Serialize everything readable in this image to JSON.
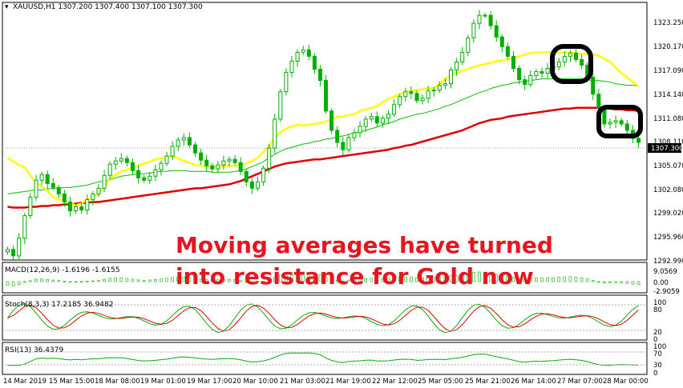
{
  "header": {
    "symbol_info": "XAUUSD,H1  1307.200 1307.400 1307.100 1307.300"
  },
  "annotation": {
    "line1": "Moving averages have turned",
    "line2": "into resistance for Gold now"
  },
  "main_axis": {
    "tick_labels": [
      "1323.250",
      "1320.170",
      "1317.090",
      "1314.140",
      "1311.080",
      "1308.110",
      "1305.070",
      "1302.080",
      "1299.020",
      "1295.960",
      "1292.990"
    ],
    "current_price": "1307.300"
  },
  "macd": {
    "label": "MACD(12,26,9) -1.6196 -1.6155",
    "tick_labels": [
      "9.0569",
      "0.00",
      "-2.9059"
    ]
  },
  "stoch": {
    "label": "Stoch(8,3,3) 17.2185 36.9482",
    "tick_labels": [
      "100",
      "80",
      "20",
      "0"
    ]
  },
  "rsi": {
    "label": "RSI(13) 36.4379",
    "tick_labels": [
      "100",
      "70",
      "30",
      "0"
    ]
  },
  "time_axis": {
    "labels": [
      "14 Mar 2019",
      "15 Mar 15:00",
      "18 Mar 08:00",
      "19 Mar 01:00",
      "19 Mar 17:00",
      "20 Mar 10:00",
      "21 Mar 03:00",
      "21 Mar 19:00",
      "22 Mar 12:00",
      "25 Mar 05:00",
      "25 Mar 21:00",
      "26 Mar 14:00",
      "27 Mar 07:00",
      "28 Mar 00:00"
    ]
  },
  "colors": {
    "bull": "#00b000",
    "ma_fast": "#ffff00",
    "ma_mid": "#00c000",
    "ma_slow": "#e00000",
    "annotation": "#e8141e"
  },
  "chart_data": {
    "type": "candlestick",
    "symbol": "XAUUSD",
    "timeframe": "H1",
    "current_price": 1307.3,
    "ylim": [
      1292.99,
      1324.5
    ],
    "closes": [
      1294.0,
      1293.2,
      1295.4,
      1298.2,
      1300.5,
      1302.6,
      1303.3,
      1302.2,
      1301.7,
      1300.9,
      1299.9,
      1298.8,
      1299.3,
      1298.9,
      1300.2,
      1300.9,
      1301.6,
      1303.2,
      1304.6,
      1305.0,
      1305.3,
      1304.8,
      1303.8,
      1302.9,
      1302.6,
      1303.1,
      1303.9,
      1304.7,
      1305.6,
      1306.8,
      1307.6,
      1307.9,
      1307.0,
      1306.0,
      1305.1,
      1304.4,
      1304.0,
      1304.5,
      1305.0,
      1305.2,
      1304.8,
      1303.7,
      1302.4,
      1301.6,
      1302.4,
      1304.1,
      1306.6,
      1310.2,
      1313.6,
      1316.0,
      1317.4,
      1318.5,
      1318.8,
      1318.0,
      1316.4,
      1315.0,
      1311.2,
      1308.8,
      1307.3,
      1306.4,
      1307.9,
      1308.5,
      1309.3,
      1310.2,
      1310.5,
      1309.7,
      1310.3,
      1310.8,
      1312.0,
      1313.0,
      1313.6,
      1313.4,
      1312.5,
      1312.8,
      1313.7,
      1313.8,
      1314.4,
      1314.6,
      1316.3,
      1317.3,
      1318.5,
      1320.3,
      1322.1,
      1323.1,
      1323.1,
      1321.8,
      1320.4,
      1319.2,
      1318.0,
      1316.5,
      1315.1,
      1314.5,
      1315.6,
      1316.1,
      1315.9,
      1316.5,
      1316.7,
      1317.3,
      1318.0,
      1318.4,
      1317.6,
      1316.9,
      1315.4,
      1313.3,
      1311.6,
      1309.6,
      1309.8,
      1310.0,
      1309.6,
      1308.8,
      1307.8,
      1307.3
    ],
    "ma_fast": [
      1305.4,
      1304.9,
      1304.5,
      1304.2,
      1303.2,
      1302.2,
      1301.9,
      1301.3,
      1300.5,
      1300.2,
      1300.1,
      1299.7,
      1299.5,
      1299.7,
      1300.3,
      1300.4,
      1301.0,
      1301.9,
      1302.8,
      1303.3,
      1303.7,
      1303.9,
      1304.2,
      1304.4,
      1304.7,
      1304.9,
      1305.2,
      1305.3,
      1305.6,
      1305.6,
      1305.3,
      1305.0,
      1304.8,
      1304.5,
      1304.4,
      1304.3,
      1304.3,
      1304.3,
      1304.3,
      1304.4,
      1304.4,
      1304.5,
      1304.7,
      1305.0,
      1305.4,
      1306.1,
      1306.9,
      1307.9,
      1308.6,
      1309.0,
      1309.3,
      1309.5,
      1309.4,
      1309.5,
      1309.6,
      1309.7,
      1309.9,
      1310.2,
      1310.5,
      1310.5,
      1310.7,
      1310.8,
      1311.2,
      1311.4,
      1311.6,
      1311.8,
      1312.3,
      1312.7,
      1313.0,
      1313.3,
      1313.6,
      1313.7,
      1313.8,
      1313.9,
      1314.0,
      1314.1,
      1314.5,
      1315.2,
      1315.7,
      1316.0,
      1316.2,
      1316.4,
      1316.7,
      1316.9,
      1317.0,
      1317.2,
      1317.4,
      1317.5,
      1317.6,
      1317.7,
      1318.0,
      1318.2,
      1318.4,
      1318.5,
      1318.5,
      1318.5,
      1318.5,
      1318.4,
      1318.5,
      1318.5,
      1318.4,
      1318.3,
      1318.3,
      1318.2,
      1318.1,
      1317.7,
      1317.3,
      1316.6,
      1315.9,
      1315.4,
      1314.8,
      1314.3
    ],
    "ma_mid": [
      1300.9,
      1301.0,
      1301.1,
      1301.2,
      1301.3,
      1301.4,
      1301.4,
      1301.5,
      1301.6,
      1301.6,
      1301.7,
      1301.7,
      1301.8,
      1301.9,
      1302.0,
      1302.2,
      1302.4,
      1302.5,
      1302.7,
      1302.9,
      1303.1,
      1303.2,
      1303.3,
      1303.4,
      1303.4,
      1303.5,
      1303.6,
      1303.7,
      1303.7,
      1303.8,
      1303.8,
      1303.8,
      1303.7,
      1303.7,
      1303.7,
      1303.7,
      1303.6,
      1303.6,
      1303.6,
      1303.6,
      1303.7,
      1303.8,
      1304.0,
      1304.3,
      1304.6,
      1304.9,
      1305.4,
      1305.8,
      1306.2,
      1306.5,
      1306.7,
      1306.9,
      1307.1,
      1307.2,
      1307.4,
      1307.5,
      1307.7,
      1307.8,
      1308.0,
      1308.1,
      1308.3,
      1308.5,
      1308.6,
      1308.8,
      1309.0,
      1309.2,
      1309.5,
      1309.7,
      1309.9,
      1310.2,
      1310.4,
      1310.6,
      1310.8,
      1310.9,
      1311.1,
      1311.3,
      1311.5,
      1311.8,
      1312.0,
      1312.3,
      1312.6,
      1312.9,
      1313.2,
      1313.5,
      1313.7,
      1314.0,
      1314.2,
      1314.4,
      1314.5,
      1314.7,
      1314.8,
      1314.9,
      1315.0,
      1315.1,
      1315.2,
      1315.2,
      1315.2,
      1315.2,
      1315.2,
      1315.2,
      1315.2,
      1315.2,
      1315.1,
      1315.0,
      1315.0,
      1314.9,
      1314.8,
      1314.6,
      1314.5,
      1314.4,
      1314.4,
      1314.3
    ],
    "ma_slow": [
      1299.3,
      1299.2,
      1299.2,
      1299.2,
      1299.3,
      1299.3,
      1299.4,
      1299.4,
      1299.5,
      1299.5,
      1299.6,
      1299.6,
      1299.7,
      1299.8,
      1299.8,
      1299.9,
      1299.9,
      1300.0,
      1300.1,
      1300.2,
      1300.3,
      1300.4,
      1300.5,
      1300.6,
      1300.7,
      1300.8,
      1300.9,
      1301.0,
      1301.1,
      1301.2,
      1301.3,
      1301.4,
      1301.5,
      1301.6,
      1301.6,
      1301.7,
      1301.8,
      1301.9,
      1302.0,
      1302.1,
      1302.3,
      1302.5,
      1302.8,
      1303.1,
      1303.4,
      1303.7,
      1304.0,
      1304.3,
      1304.5,
      1304.7,
      1304.8,
      1304.9,
      1305.0,
      1305.1,
      1305.2,
      1305.2,
      1305.3,
      1305.4,
      1305.5,
      1305.6,
      1305.7,
      1305.8,
      1305.9,
      1306.0,
      1306.1,
      1306.2,
      1306.3,
      1306.4,
      1306.6,
      1306.7,
      1306.9,
      1307.0,
      1307.2,
      1307.4,
      1307.6,
      1307.8,
      1308.0,
      1308.2,
      1308.4,
      1308.6,
      1308.8,
      1309.1,
      1309.4,
      1309.7,
      1309.9,
      1310.1,
      1310.2,
      1310.3,
      1310.5,
      1310.6,
      1310.7,
      1310.8,
      1310.9,
      1311.0,
      1311.1,
      1311.2,
      1311.3,
      1311.4,
      1311.5,
      1311.5,
      1311.6,
      1311.6,
      1311.6,
      1311.6,
      1311.6,
      1311.5,
      1311.5,
      1311.4,
      1311.4,
      1311.3,
      1311.3,
      1311.2
    ]
  }
}
